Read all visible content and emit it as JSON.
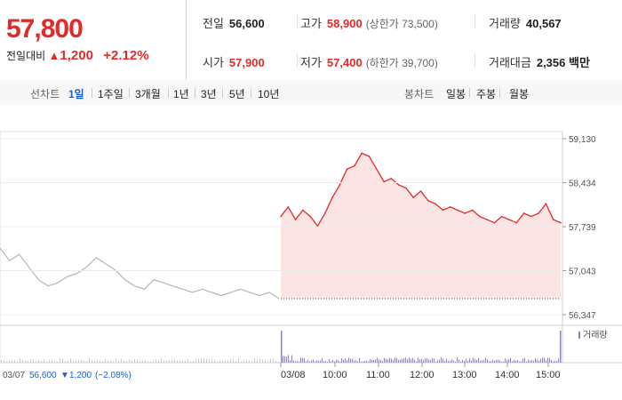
{
  "quote": {
    "price": "57,800",
    "diff_label": "전일대비",
    "diff_symbol": "▲",
    "diff_amount": "1,200",
    "diff_percent": "+2.12%"
  },
  "stats": {
    "prev_close": {
      "label": "전일",
      "value": "56,600"
    },
    "high": {
      "label": "고가",
      "value": "58,900",
      "sub": "(상한가 73,500)"
    },
    "volume": {
      "label": "거래량",
      "value": "40,567"
    },
    "open": {
      "label": "시가",
      "value": "57,900"
    },
    "low": {
      "label": "저가",
      "value": "57,400",
      "sub": "(하한가 39,700)"
    },
    "trade_value": {
      "label": "거래대금",
      "value": "2,356 백만"
    }
  },
  "tabs": {
    "line_label": "선차트",
    "line_items": [
      "1일",
      "1주일",
      "3개월",
      "1년",
      "3년",
      "5년",
      "10년"
    ],
    "candle_label": "봉차트",
    "candle_items": [
      "일봉",
      "주봉",
      "월봉"
    ]
  },
  "prev_day_info": {
    "date": "03/07",
    "close": "56,600",
    "symbol": "▼",
    "change": "1,200",
    "pct": "(−2.08%)"
  },
  "volume_legend": "거래량",
  "colors": {
    "up": "#e12b2b",
    "down": "#1a5fd0",
    "prev_line": "#b5b5b5",
    "fill": "#fbe4e4",
    "volume_bar": "#8d84c6"
  },
  "chart_data": {
    "type": "line",
    "y_ticks": [
      "59,130",
      "58,434",
      "57,739",
      "57,043",
      "56,347"
    ],
    "ylim": [
      56347,
      59130
    ],
    "x_ticks": [
      "03/08",
      "10:00",
      "11:00",
      "12:00",
      "13:00",
      "14:00",
      "15:00"
    ],
    "series": [
      {
        "x": [
          "09:00",
          "09:10",
          "09:20",
          "09:30",
          "09:40",
          "09:50",
          "10:00",
          "10:10",
          "10:20",
          "10:30",
          "10:40",
          "10:50",
          "11:00",
          "11:10",
          "11:20",
          "11:30",
          "11:40",
          "11:50",
          "12:00",
          "12:10",
          "12:20",
          "12:30",
          "12:40",
          "12:50",
          "13:00",
          "13:10",
          "13:20",
          "13:30",
          "13:40",
          "13:50",
          "14:00",
          "14:10",
          "14:20",
          "14:30",
          "14:40",
          "14:50",
          "15:00",
          "15:10",
          "15:20"
        ],
        "values": [
          57900,
          58050,
          57850,
          58000,
          57900,
          57750,
          57950,
          58200,
          58400,
          58650,
          58700,
          58900,
          58850,
          58650,
          58450,
          58500,
          58400,
          58350,
          58200,
          58300,
          58150,
          58100,
          58000,
          58050,
          58000,
          57950,
          58000,
          57900,
          57850,
          57800,
          57900,
          57850,
          57800,
          57950,
          57900,
          57950,
          58100,
          57850,
          57800
        ]
      }
    ],
    "prev_day_close": 56600,
    "prev_day_values": [
      57400,
      57200,
      57300,
      57100,
      56900,
      56800,
      56850,
      56950,
      57000,
      57100,
      57250,
      57150,
      57050,
      56900,
      56800,
      56750,
      56900,
      56850,
      56800,
      56750,
      56700,
      56750,
      56700,
      56650,
      56700,
      56750,
      56700,
      56650,
      56700,
      56600
    ]
  }
}
